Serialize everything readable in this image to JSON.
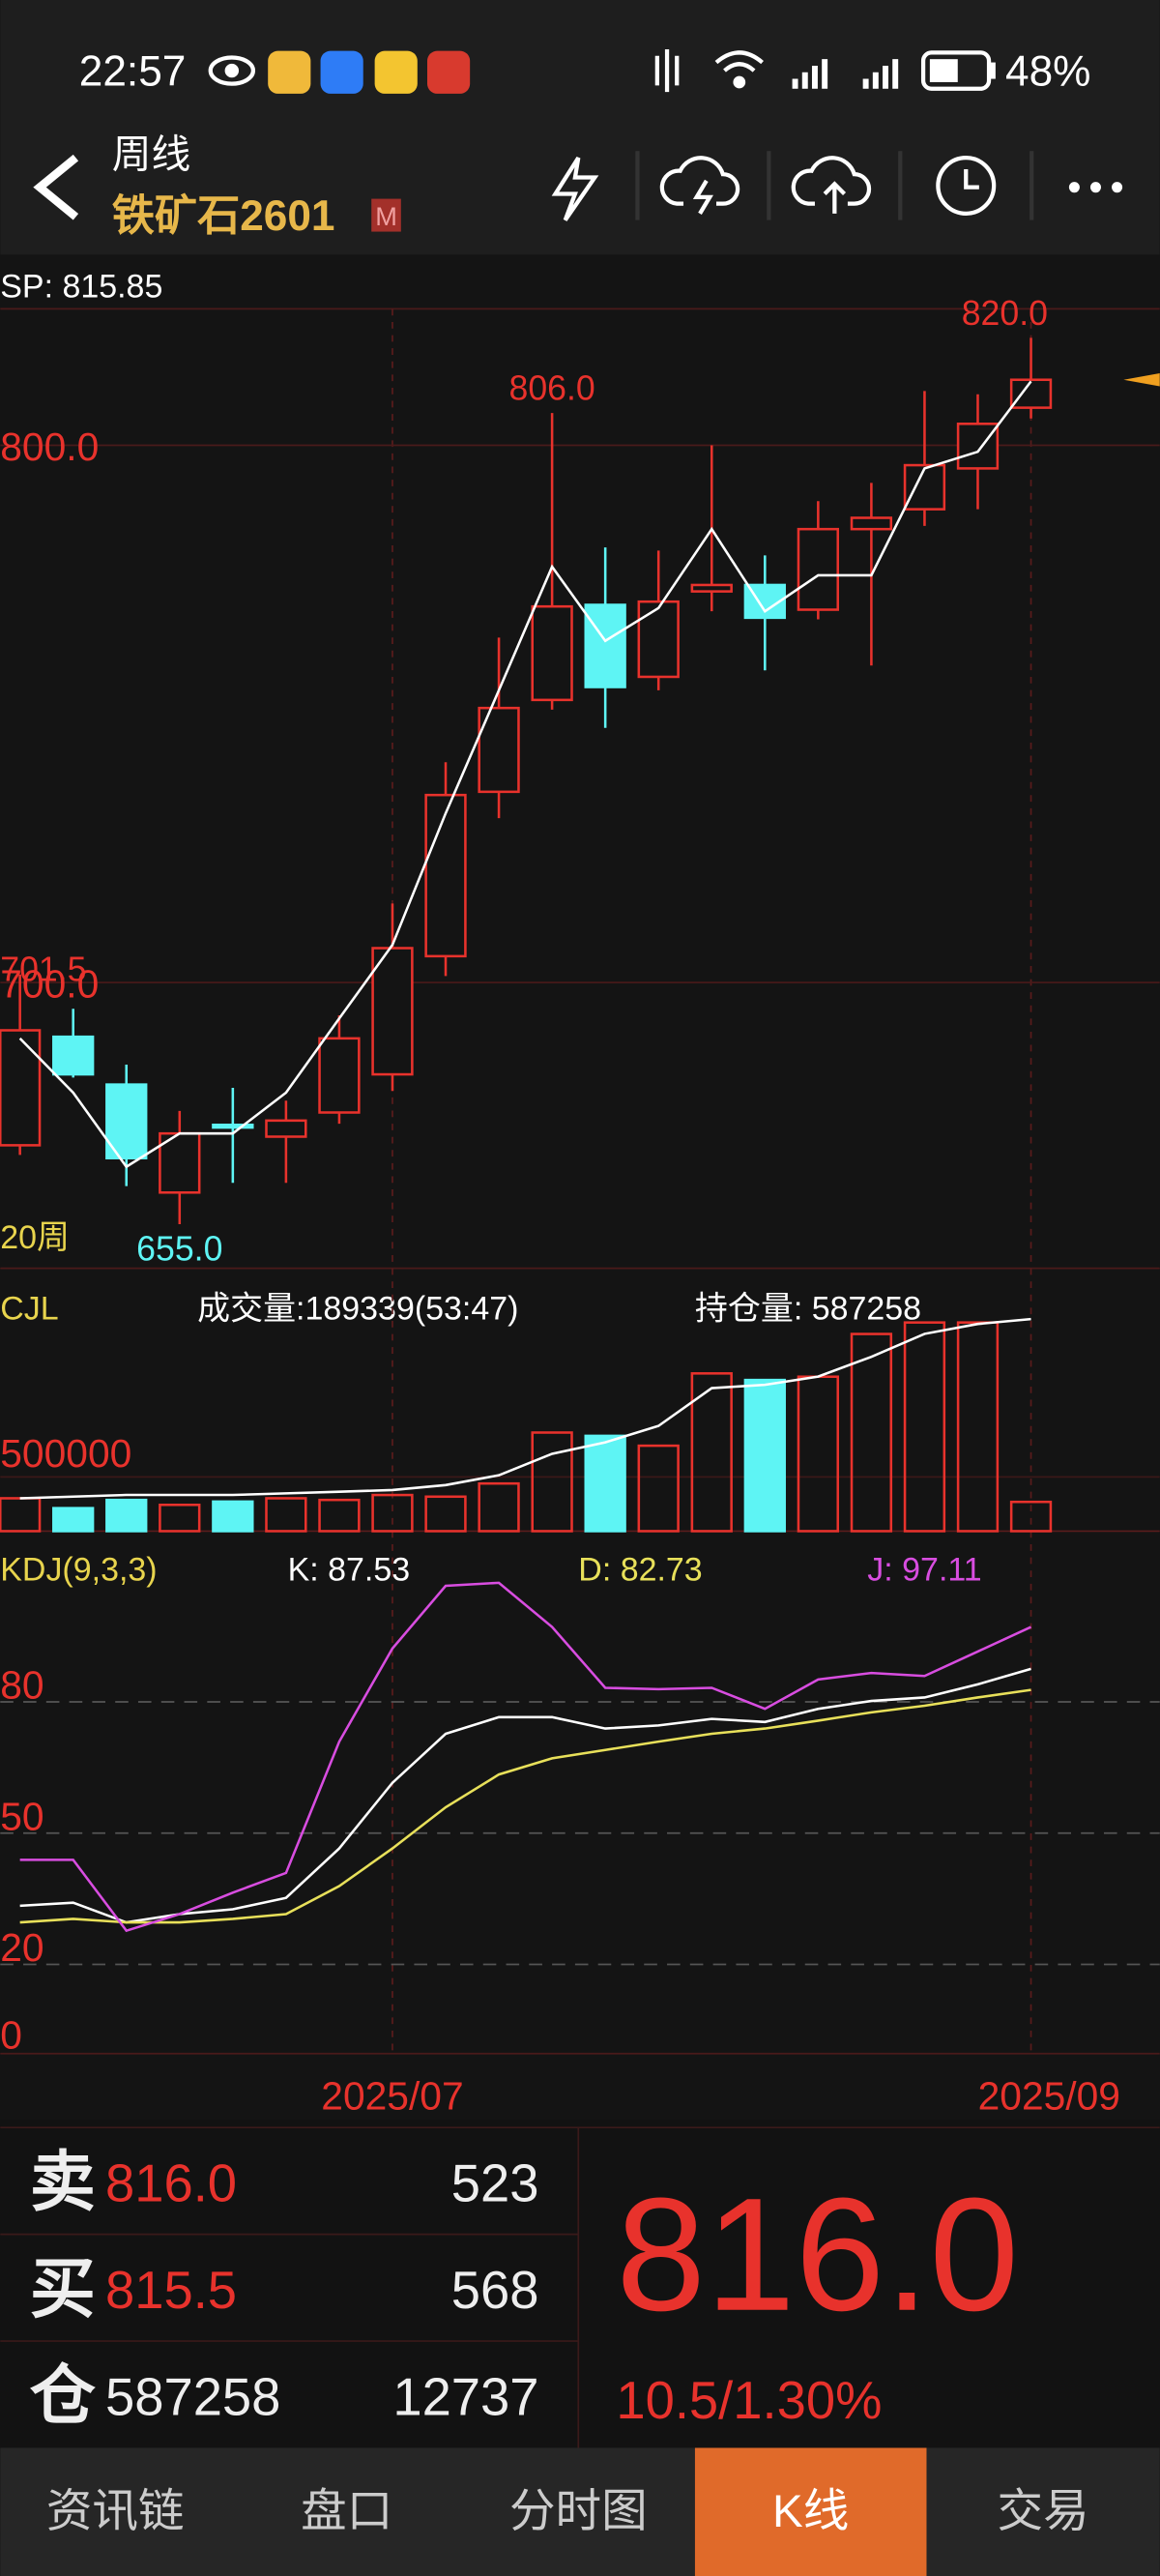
{
  "status_bar": {
    "time": "22:57",
    "battery": "48%"
  },
  "header": {
    "period": "周线",
    "symbol": "铁矿石2601",
    "badge": "M"
  },
  "chart_data": [
    {
      "type": "candlestick",
      "title": "SP: 815.85",
      "categories": [
        null,
        null,
        null,
        null,
        null,
        null,
        null,
        "2025/07",
        null,
        null,
        null,
        null,
        null,
        null,
        null,
        null,
        null,
        null,
        null,
        "2025/09"
      ],
      "open": [
        669.7,
        689.9,
        681.0,
        660.9,
        673.5,
        671.3,
        675.8,
        682.9,
        704.9,
        735.5,
        752.6,
        770.3,
        756.9,
        772.8,
        774.0,
        769.4,
        784.4,
        788.1,
        795.7,
        807.0
      ],
      "close": [
        691.1,
        682.9,
        667.3,
        671.9,
        673.0,
        674.3,
        689.6,
        706.4,
        734.9,
        751.1,
        770.0,
        755.0,
        770.9,
        774.0,
        767.9,
        784.4,
        786.5,
        796.3,
        804.0,
        812.2
      ],
      "high": [
        701.5,
        695.1,
        684.7,
        676.1,
        680.4,
        678.0,
        693.9,
        714.7,
        741.0,
        764.2,
        806.0,
        781.0,
        780.4,
        800.0,
        779.5,
        789.6,
        793.0,
        810.1,
        809.5,
        820.0
      ],
      "low": [
        667.9,
        682.3,
        662.1,
        655.0,
        662.7,
        662.7,
        673.7,
        679.8,
        701.2,
        730.6,
        750.8,
        747.4,
        754.4,
        769.1,
        758.1,
        767.6,
        759.0,
        785.0,
        788.1,
        805.0
      ],
      "up_color": "#e8322c",
      "down_color": "#5ef4f4",
      "series": [
        {
          "name": "20周",
          "color": "#ffffff",
          "values": [
            689.6,
            679.5,
            665.7,
            671.9,
            671.9,
            679.5,
            693.3,
            707.0,
            731.5,
            754.4,
            777.4,
            763.6,
            769.7,
            784.4,
            769.1,
            775.8,
            775.8,
            795.7,
            798.8,
            811.9
          ]
        }
      ],
      "annotations": [
        {
          "label": "806.0",
          "value": 806.0
        },
        {
          "label": "820.0",
          "value": 820.0
        },
        {
          "label": "655.0",
          "value": 655.0
        },
        {
          "label": "701.5",
          "value": 701.5
        }
      ],
      "ylim": [
        646.8,
        825.4
      ],
      "yticks": [
        {
          "value": 800,
          "label": "800.0"
        },
        {
          "value": 700,
          "label": "700.0"
        }
      ],
      "grid": true
    },
    {
      "type": "bar",
      "title": "CJL",
      "subtitle": "成交量:189339(53:47)",
      "y2_label": "持仓量: 587258",
      "values": [
        212800,
        148900,
        202100,
        170200,
        191500,
        212800,
        202100,
        234000,
        223400,
        308500,
        638300,
        617000,
        553200,
        1021300,
        978700,
        1000000,
        1276600,
        1351000,
        1351000,
        189339
      ],
      "series": [
        {
          "color": "#ffffff",
          "axis": "y2",
          "values": [
            344500,
            346800,
            349000,
            349000,
            349000,
            351200,
            353400,
            355700,
            362400,
            375700,
            404700,
            420300,
            442500,
            493700,
            498200,
            509300,
            536100,
            567200,
            580600,
            587258
          ]
        }
      ],
      "ylim": [
        0,
        1702000
      ],
      "yticks": [
        500000
      ],
      "y2lim": [
        300000,
        656000
      ],
      "grid": true
    },
    {
      "type": "line",
      "title": "KDJ(9,3,3)",
      "series": [
        {
          "name": "K: 87.53",
          "color": "#ffffff",
          "values": [
            33.4,
            34.1,
            29.6,
            31.5,
            32.6,
            35.2,
            46.5,
            61.5,
            72.7,
            76.5,
            76.5,
            73.9,
            74.6,
            76.1,
            75.4,
            78.4,
            80.2,
            81.0,
            84.0,
            87.53
          ]
        },
        {
          "name": "D: 82.73",
          "color": "#e8e05a",
          "values": [
            29.6,
            30.4,
            29.6,
            29.6,
            30.4,
            31.5,
            37.9,
            46.5,
            55.9,
            63.4,
            67.1,
            69.0,
            70.9,
            72.7,
            73.9,
            75.7,
            77.6,
            79.1,
            81.0,
            82.73
          ]
        },
        {
          "name": "J: 97.11",
          "color": "#d84de0",
          "values": [
            43.9,
            43.9,
            27.7,
            31.5,
            36.4,
            40.9,
            70.9,
            92.2,
            106.5,
            107.2,
            97.1,
            83.2,
            82.9,
            83.2,
            78.4,
            85.1,
            86.6,
            85.9,
            91.5,
            97.11
          ]
        }
      ],
      "ylim": [
        0,
        116
      ],
      "yticks": [
        80,
        50,
        20,
        0
      ],
      "grid": true
    }
  ],
  "quote": {
    "rows": [
      {
        "label": "卖",
        "price": "816.0",
        "qty": "523"
      },
      {
        "label": "买",
        "price": "815.5",
        "qty": "568"
      },
      {
        "label": "仓",
        "price": "587258",
        "qty": "12737"
      }
    ],
    "last": "816.0",
    "change": "10.5/1.30%"
  },
  "tabs": [
    "资讯链",
    "盘口",
    "分时图",
    "K线",
    "交易"
  ],
  "active_tab": "K线"
}
